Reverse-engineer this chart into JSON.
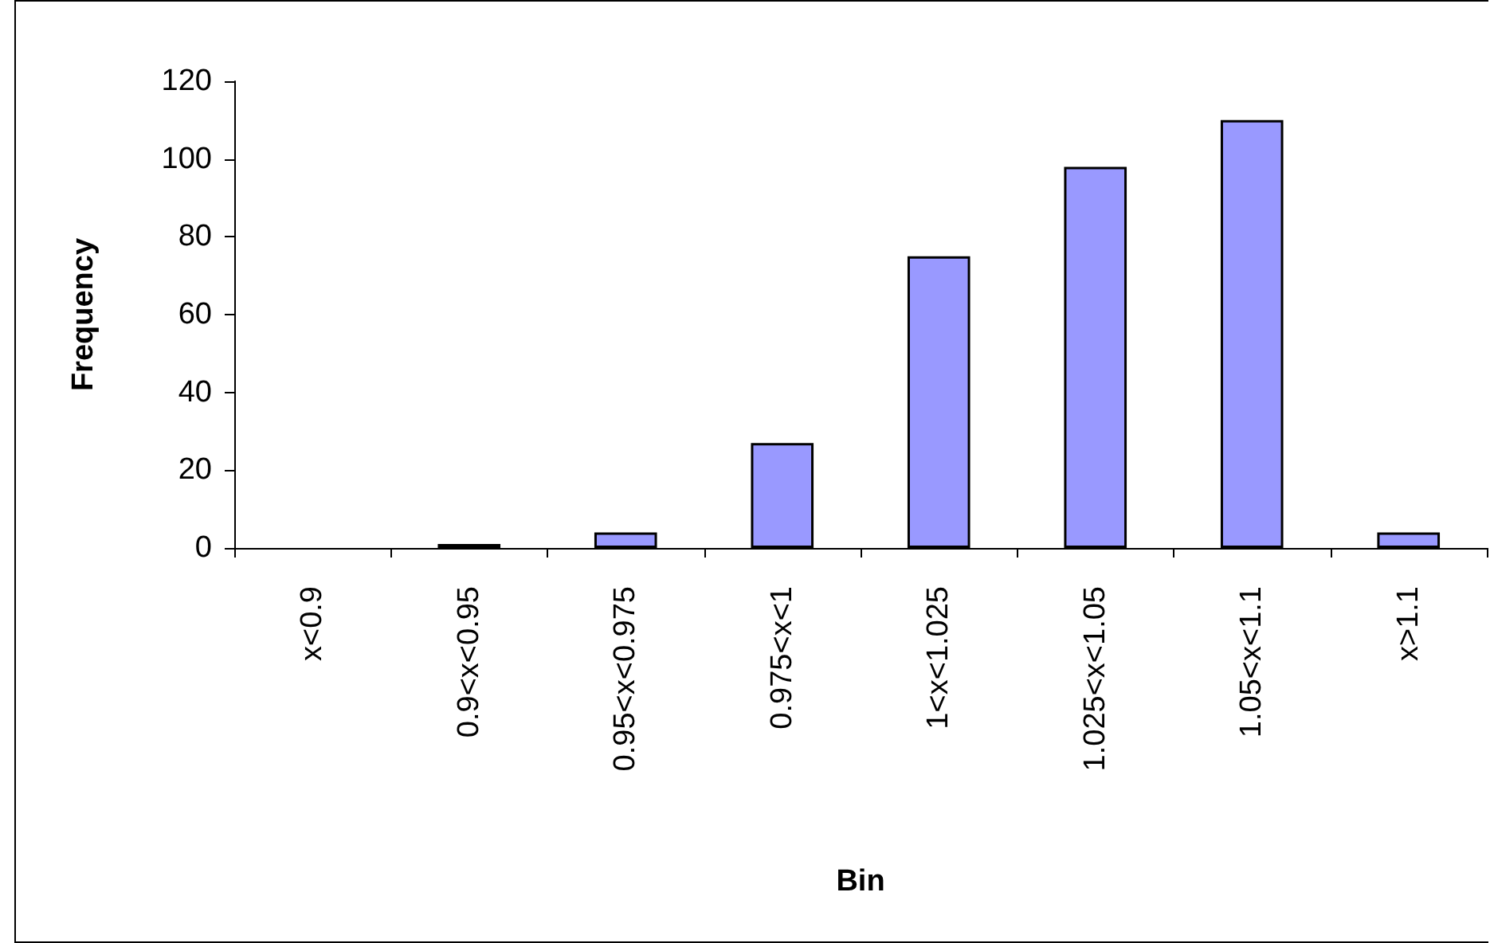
{
  "chart_data": {
    "type": "bar",
    "xlabel": "Bin",
    "ylabel": "Frequency",
    "categories": [
      "x<0.9",
      "0.9<x<0.95",
      "0.95<x<0.975",
      "0.975<x<1",
      "1<x<1.025",
      "1.025<x<1.05",
      "1.05<x<1.1",
      "x>1.1"
    ],
    "values": [
      0,
      1,
      4,
      27,
      75,
      98,
      110,
      4
    ],
    "color": "#9999ff",
    "ylim": [
      0,
      120
    ],
    "yticks": [
      0,
      20,
      40,
      60,
      80,
      100,
      120
    ],
    "grid": false
  }
}
